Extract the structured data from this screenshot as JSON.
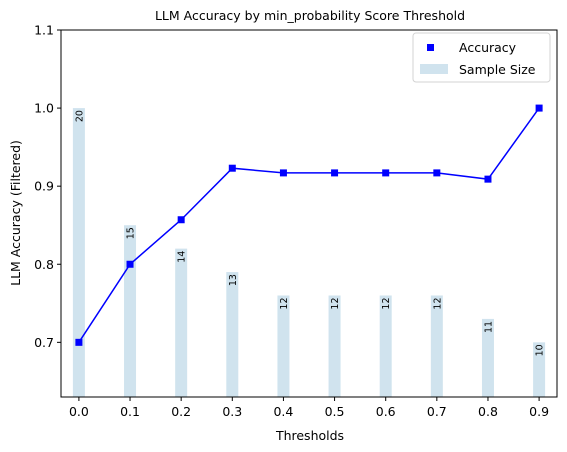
{
  "chart_data": {
    "type": "bar+line",
    "title": "LLM Accuracy by min_probability Score Threshold",
    "xlabel": "Thresholds",
    "ylabel": "LLM Accuracy (Filtered)",
    "ylim": [
      0.63,
      1.1
    ],
    "yticks": [
      0.7,
      0.8,
      0.9,
      1.0,
      1.1
    ],
    "ytick_labels": [
      "0.7",
      "0.8",
      "0.9",
      "1.0",
      "1.1"
    ],
    "xlim": [
      -0.035,
      0.935
    ],
    "x": [
      0.0,
      0.1,
      0.2,
      0.3,
      0.4,
      0.5,
      0.6,
      0.7,
      0.8,
      0.9
    ],
    "xtick_labels": [
      "0.0",
      "0.1",
      "0.2",
      "0.3",
      "0.4",
      "0.5",
      "0.6",
      "0.7",
      "0.8",
      "0.9"
    ],
    "grid": false,
    "legend": {
      "placement": "top-right",
      "entries": [
        {
          "label": "Accuracy",
          "kind": "marker",
          "color": "#0000ff"
        },
        {
          "label": "Sample Size",
          "kind": "patch",
          "color": "#d0e3ee"
        }
      ]
    },
    "series": [
      {
        "name": "Accuracy",
        "type": "line",
        "color": "#0000ff",
        "marker": "square",
        "values": [
          0.7,
          0.8,
          0.857,
          0.923,
          0.917,
          0.917,
          0.917,
          0.917,
          0.909,
          1.0
        ]
      },
      {
        "name": "Sample Size",
        "type": "bar",
        "color": "#d0e3ee",
        "bar_values": [
          1.0,
          0.85,
          0.82,
          0.79,
          0.76,
          0.76,
          0.76,
          0.76,
          0.73,
          0.7
        ],
        "labels": [
          "20",
          "15",
          "14",
          "13",
          "12",
          "12",
          "12",
          "12",
          "11",
          "10"
        ]
      }
    ]
  }
}
